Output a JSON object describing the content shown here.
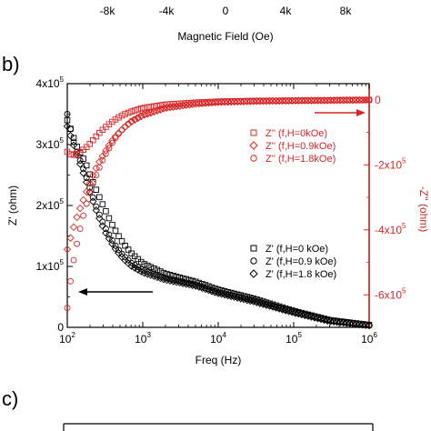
{
  "top_strip": {
    "tick_labels": [
      "-8k",
      "-4k",
      "0",
      "4k",
      "8k"
    ],
    "tick_values": [
      -8000,
      -4000,
      0,
      4000,
      8000
    ],
    "xlabel": "Magnetic Field (Oe)"
  },
  "panel_b_label": "b)",
  "panel_c_label": "c)",
  "chart_data": {
    "type": "scatter",
    "xlabel": "Freq (Hz)",
    "ylabel_left": "Z' (ohm)",
    "ylabel_right": "-Z'' (ohm)",
    "x_scale": "log",
    "xlim": [
      100,
      1000000
    ],
    "ylim_left": [
      0,
      400000
    ],
    "ylim_right": [
      -700000,
      50000
    ],
    "x_ticks": [
      {
        "value": 100,
        "base": "10",
        "exp": "2"
      },
      {
        "value": 1000,
        "base": "10",
        "exp": "3"
      },
      {
        "value": 10000,
        "base": "10",
        "exp": "4"
      },
      {
        "value": 100000,
        "base": "10",
        "exp": "5"
      },
      {
        "value": 1000000,
        "base": "10",
        "exp": "6"
      }
    ],
    "y_left_ticks": [
      {
        "value": 0,
        "mant": "0",
        "exp": ""
      },
      {
        "value": 100000,
        "mant": "1x10",
        "exp": "5"
      },
      {
        "value": 200000,
        "mant": "2x10",
        "exp": "5"
      },
      {
        "value": 300000,
        "mant": "3x10",
        "exp": "5"
      },
      {
        "value": 400000,
        "mant": "4x10",
        "exp": "5"
      }
    ],
    "y_right_ticks": [
      {
        "value": 0,
        "mant": "0",
        "exp": ""
      },
      {
        "value": -200000,
        "mant": "-2x10",
        "exp": "5"
      },
      {
        "value": -400000,
        "mant": "-4x10",
        "exp": "5"
      },
      {
        "value": -600000,
        "mant": "-6x10",
        "exp": "5"
      }
    ],
    "colors": {
      "left": "#000000",
      "right": "#d62728"
    },
    "legend_left": {
      "placement": "bottom-right",
      "entries": [
        "Z' (f,H=0 kOe)",
        "Z' (f,H=0.9 kOe)",
        "Z' (f,H=1.8 kOe)"
      ]
    },
    "legend_right": {
      "placement": "upper-right",
      "entries": [
        "Z'' (f,H=0kOe)",
        "Z'' (f,H=0.9kOe)",
        "Z'' (f,H=1.8kOe)"
      ]
    },
    "arrows": [
      {
        "axis": "left",
        "direction": "left"
      },
      {
        "axis": "right",
        "direction": "right"
      }
    ],
    "series": [
      {
        "name": "Z' (f,H=0 kOe)",
        "axis": "left",
        "marker": "square",
        "color": "#000000",
        "x": [
          100,
          115,
          130,
          150,
          175,
          200,
          230,
          270,
          320,
          380,
          450,
          550,
          700,
          1000,
          2000,
          5000,
          10000,
          30000,
          100000,
          300000,
          1000000
        ],
        "y": [
          340000,
          320000,
          300000,
          285000,
          270000,
          250000,
          232000,
          212000,
          192000,
          172000,
          155000,
          138000,
          122000,
          105000,
          88000,
          75000,
          62000,
          47000,
          27000,
          12000,
          4000
        ]
      },
      {
        "name": "Z' (f,H=0.9 kOe)",
        "axis": "left",
        "marker": "circle",
        "color": "#000000",
        "x": [
          100,
          115,
          130,
          150,
          175,
          200,
          230,
          270,
          320,
          380,
          450,
          550,
          700,
          1000,
          2000,
          5000,
          10000,
          30000,
          100000,
          300000,
          1000000
        ],
        "y": [
          350000,
          315000,
          292000,
          272000,
          250000,
          228000,
          205000,
          183000,
          163000,
          146000,
          131000,
          118000,
          106000,
          94000,
          81000,
          70000,
          58000,
          44000,
          25000,
          11000,
          3000
        ]
      },
      {
        "name": "Z' (f,H=1.8 kOe)",
        "axis": "left",
        "marker": "diamond",
        "color": "#000000",
        "x": [
          100,
          115,
          130,
          150,
          175,
          200,
          230,
          270,
          320,
          380,
          450,
          550,
          700,
          1000,
          2000,
          5000,
          10000,
          30000,
          100000,
          300000,
          1000000
        ],
        "y": [
          330000,
          308000,
          288000,
          266000,
          243000,
          221000,
          199000,
          177000,
          156000,
          140000,
          126000,
          113000,
          101000,
          90000,
          78000,
          68000,
          56000,
          42000,
          24000,
          10000,
          3000
        ]
      },
      {
        "name": "Z'' (f,H=0kOe)",
        "axis": "right",
        "marker": "square",
        "color": "#d62728",
        "x": [
          100,
          115,
          130,
          150,
          175,
          200,
          230,
          270,
          320,
          380,
          450,
          550,
          700,
          1000,
          2000,
          5000,
          10000,
          30000,
          100000,
          300000,
          1000000
        ],
        "y": [
          -160000,
          -170000,
          -168000,
          -160000,
          -148000,
          -135000,
          -118000,
          -100000,
          -84000,
          -70000,
          -58000,
          -46000,
          -36000,
          -25000,
          -14000,
          -8000,
          -5000,
          -3000,
          -2000,
          -1000,
          0
        ]
      },
      {
        "name": "Z'' (f,H=0.9kOe)",
        "axis": "right",
        "marker": "diamond",
        "color": "#d62728",
        "x": [
          100,
          115,
          130,
          150,
          175,
          200,
          230,
          270,
          320,
          380,
          450,
          550,
          700,
          1000,
          2000,
          5000,
          10000,
          30000,
          100000,
          300000,
          1000000
        ],
        "y": [
          -460000,
          -410000,
          -370000,
          -330000,
          -290000,
          -255000,
          -220000,
          -188000,
          -158000,
          -130000,
          -108000,
          -88000,
          -68000,
          -48000,
          -25000,
          -12000,
          -7000,
          -4000,
          -2500,
          -1500,
          0
        ]
      },
      {
        "name": "Z'' (f,H=1.8kOe)",
        "axis": "right",
        "marker": "circle",
        "color": "#d62728",
        "x": [
          100,
          110,
          120,
          135,
          150,
          170,
          190,
          215,
          245,
          280,
          320,
          380,
          450,
          550,
          700,
          1000,
          2000,
          5000,
          10000,
          30000,
          100000,
          300000,
          1000000
        ],
        "y": [
          -640000,
          -560000,
          -500000,
          -440000,
          -390000,
          -340000,
          -300000,
          -262000,
          -228000,
          -196000,
          -168000,
          -138000,
          -112000,
          -88000,
          -66000,
          -46000,
          -24000,
          -12000,
          -7000,
          -4000,
          -2500,
          -1500,
          0
        ]
      }
    ]
  }
}
